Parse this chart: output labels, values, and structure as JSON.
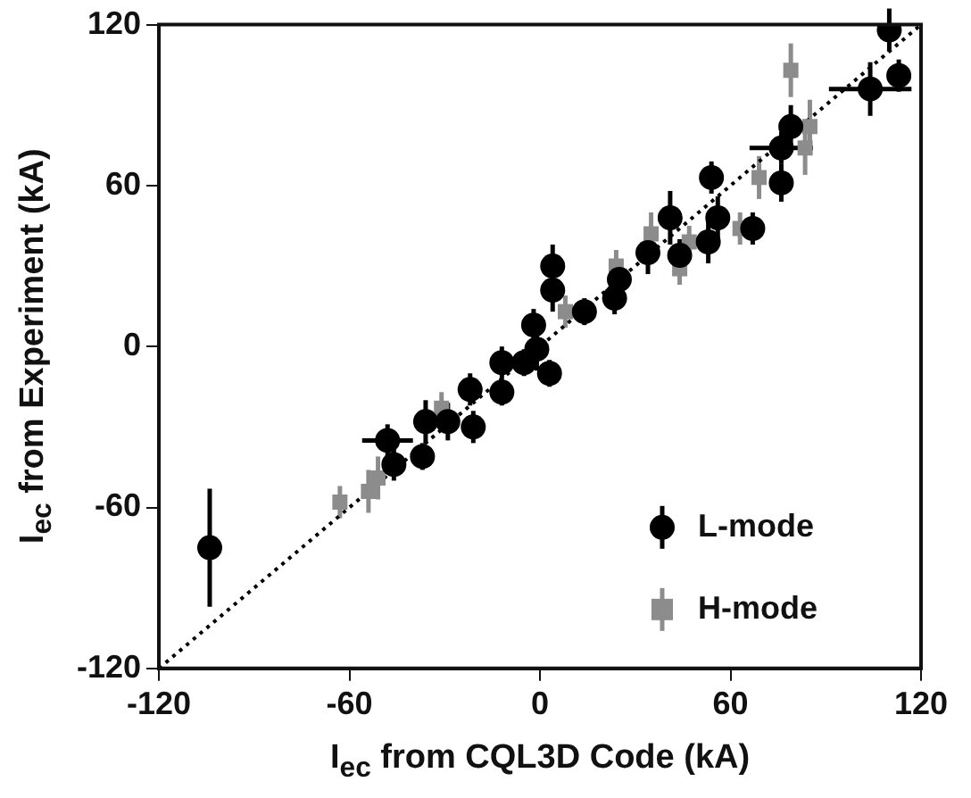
{
  "chart_data": {
    "type": "scatter",
    "xlabel": "I$_{ec}$ from CQL3D Code (kA)",
    "ylabel": "I$_{ec}$ from Experiment (kA)",
    "xlim": [
      -120,
      120
    ],
    "ylim": [
      -120,
      120
    ],
    "xticks": [
      -120,
      -60,
      0,
      60,
      120
    ],
    "yticks": [
      -120,
      -60,
      0,
      60,
      120
    ],
    "grid": false,
    "legend": "bottom right",
    "series": [
      {
        "name": "L-mode",
        "color": "#000000",
        "marker": "circle",
        "x": [
          -104,
          -48,
          -46,
          -37,
          -36,
          -29,
          -21,
          -22,
          -12,
          -12,
          -5,
          3,
          -1,
          4,
          4,
          -2,
          14,
          23.5,
          25,
          34,
          41,
          44,
          53,
          54,
          56,
          67,
          76,
          76,
          79,
          104,
          113,
          110
        ],
        "values": [
          -75,
          -35,
          -44,
          -41,
          -28,
          -28,
          -30,
          -16,
          -6,
          -17,
          -6,
          -10,
          -1,
          21,
          30,
          8,
          13,
          18,
          25,
          35,
          48,
          34,
          39,
          63,
          48,
          44,
          61,
          74,
          82,
          96,
          101,
          118
        ],
        "errors": [
          22,
          6,
          6,
          5,
          8,
          7,
          6,
          6,
          6,
          5,
          5,
          5,
          8,
          8,
          8,
          6,
          5,
          6,
          6,
          8,
          10,
          6,
          8,
          6,
          8,
          6,
          7,
          6,
          8,
          10,
          6,
          8
        ],
        "xerrors": [
          null,
          8,
          null,
          null,
          null,
          null,
          null,
          null,
          null,
          null,
          null,
          null,
          null,
          null,
          null,
          null,
          null,
          null,
          null,
          null,
          null,
          null,
          null,
          null,
          null,
          null,
          null,
          10,
          null,
          13,
          null,
          null
        ]
      },
      {
        "name": "H-mode",
        "color": "#8c8c8c",
        "marker": "square",
        "x": [
          -63,
          -54,
          -51,
          -31,
          8,
          24,
          35,
          44,
          47,
          56,
          63,
          69,
          79,
          83.5,
          85
        ],
        "values": [
          -58,
          -54,
          -49,
          -23,
          13,
          30,
          42,
          29,
          39,
          null,
          44,
          63,
          103,
          74,
          82
        ],
        "errors": [
          6,
          8,
          8,
          6,
          6,
          6,
          8,
          6,
          6,
          null,
          6,
          8,
          10,
          10,
          10
        ]
      },
      {
        "type": "line",
        "color": "#000000",
        "marker": "none",
        "line_style": "dotted",
        "x": [
          -120,
          120
        ],
        "values": [
          -120,
          120
        ]
      }
    ]
  }
}
